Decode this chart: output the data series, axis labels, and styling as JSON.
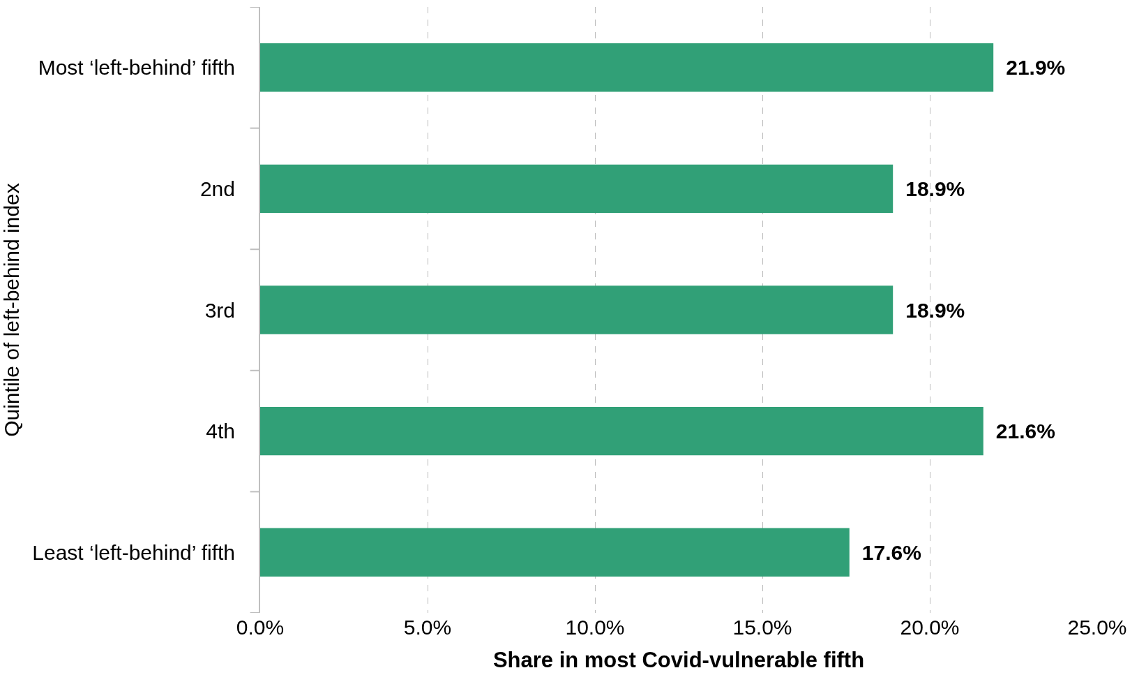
{
  "chart_data": {
    "type": "bar",
    "orientation": "horizontal",
    "categories": [
      "Most ‘left-behind’ fifth",
      "2nd",
      "3rd",
      "4th",
      "Least ‘left-behind’ fifth"
    ],
    "values": [
      21.9,
      18.9,
      18.9,
      21.6,
      17.6
    ],
    "value_labels": [
      "21.9%",
      "18.9%",
      "18.9%",
      "21.6%",
      "17.6%"
    ],
    "color": "#31a077",
    "xlabel": "Share in most Covid-vulnerable fifth",
    "ylabel": "Quintile of left-behind index",
    "xlim": [
      0,
      25
    ],
    "xticks": [
      {
        "value": 0,
        "label": "0.0%"
      },
      {
        "value": 5,
        "label": "5.0%"
      },
      {
        "value": 10,
        "label": "10.0%"
      },
      {
        "value": 15,
        "label": "15.0%"
      },
      {
        "value": 20,
        "label": "20.0%"
      },
      {
        "value": 25,
        "label": "25.0%"
      }
    ],
    "grid": "x"
  }
}
